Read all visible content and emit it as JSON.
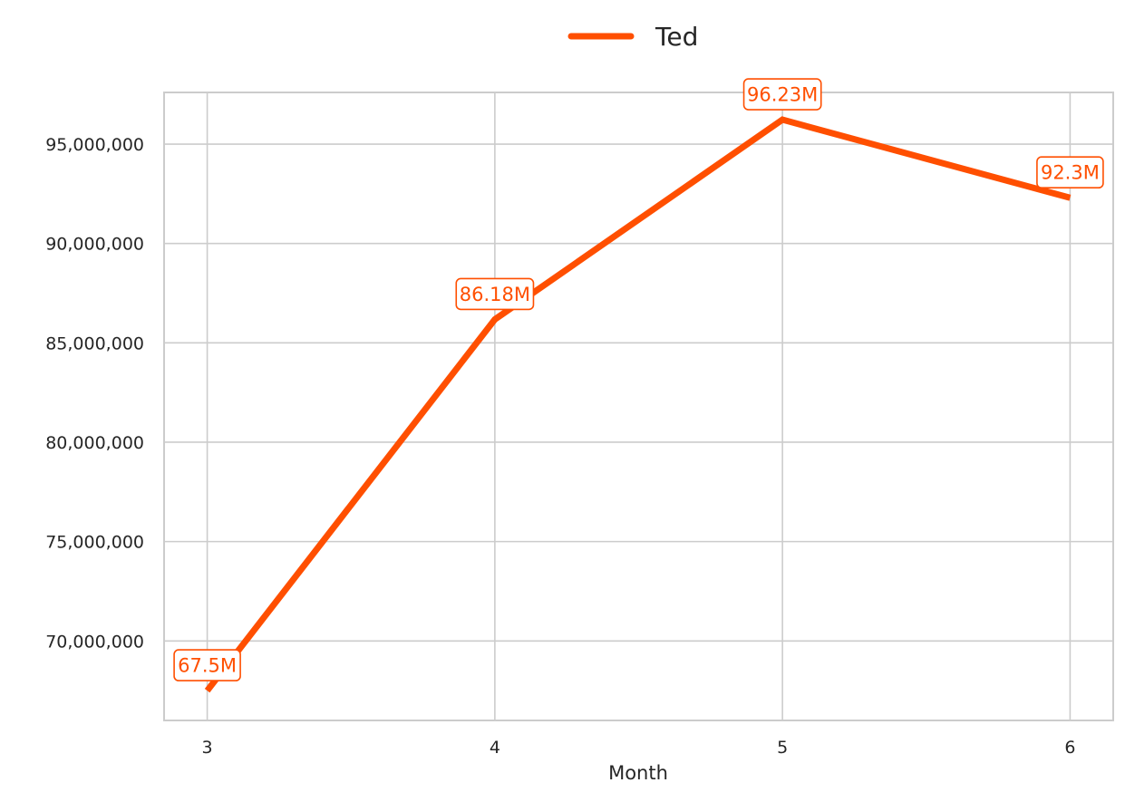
{
  "chart_data": {
    "type": "line",
    "title": "",
    "xlabel": "Month",
    "ylabel": "",
    "x": [
      3,
      4,
      5,
      6
    ],
    "x_tick_labels": [
      "3",
      "4",
      "5",
      "6"
    ],
    "xlim": [
      2.85,
      6.15
    ],
    "ylim": [
      66000000,
      97600000
    ],
    "y_ticks": [
      70000000,
      75000000,
      80000000,
      85000000,
      90000000,
      95000000
    ],
    "y_tick_labels": [
      "70,000,000",
      "75,000,000",
      "80,000,000",
      "85,000,000",
      "90,000,000",
      "95,000,000"
    ],
    "grid": true,
    "legend_position": "top-center",
    "series": [
      {
        "name": "Ted",
        "color": "#ff4f00",
        "values": [
          67500000,
          86180000,
          96230000,
          92300000
        ],
        "data_labels": [
          "67.5M",
          "86.18M",
          "96.23M",
          "92.3M"
        ]
      }
    ]
  }
}
